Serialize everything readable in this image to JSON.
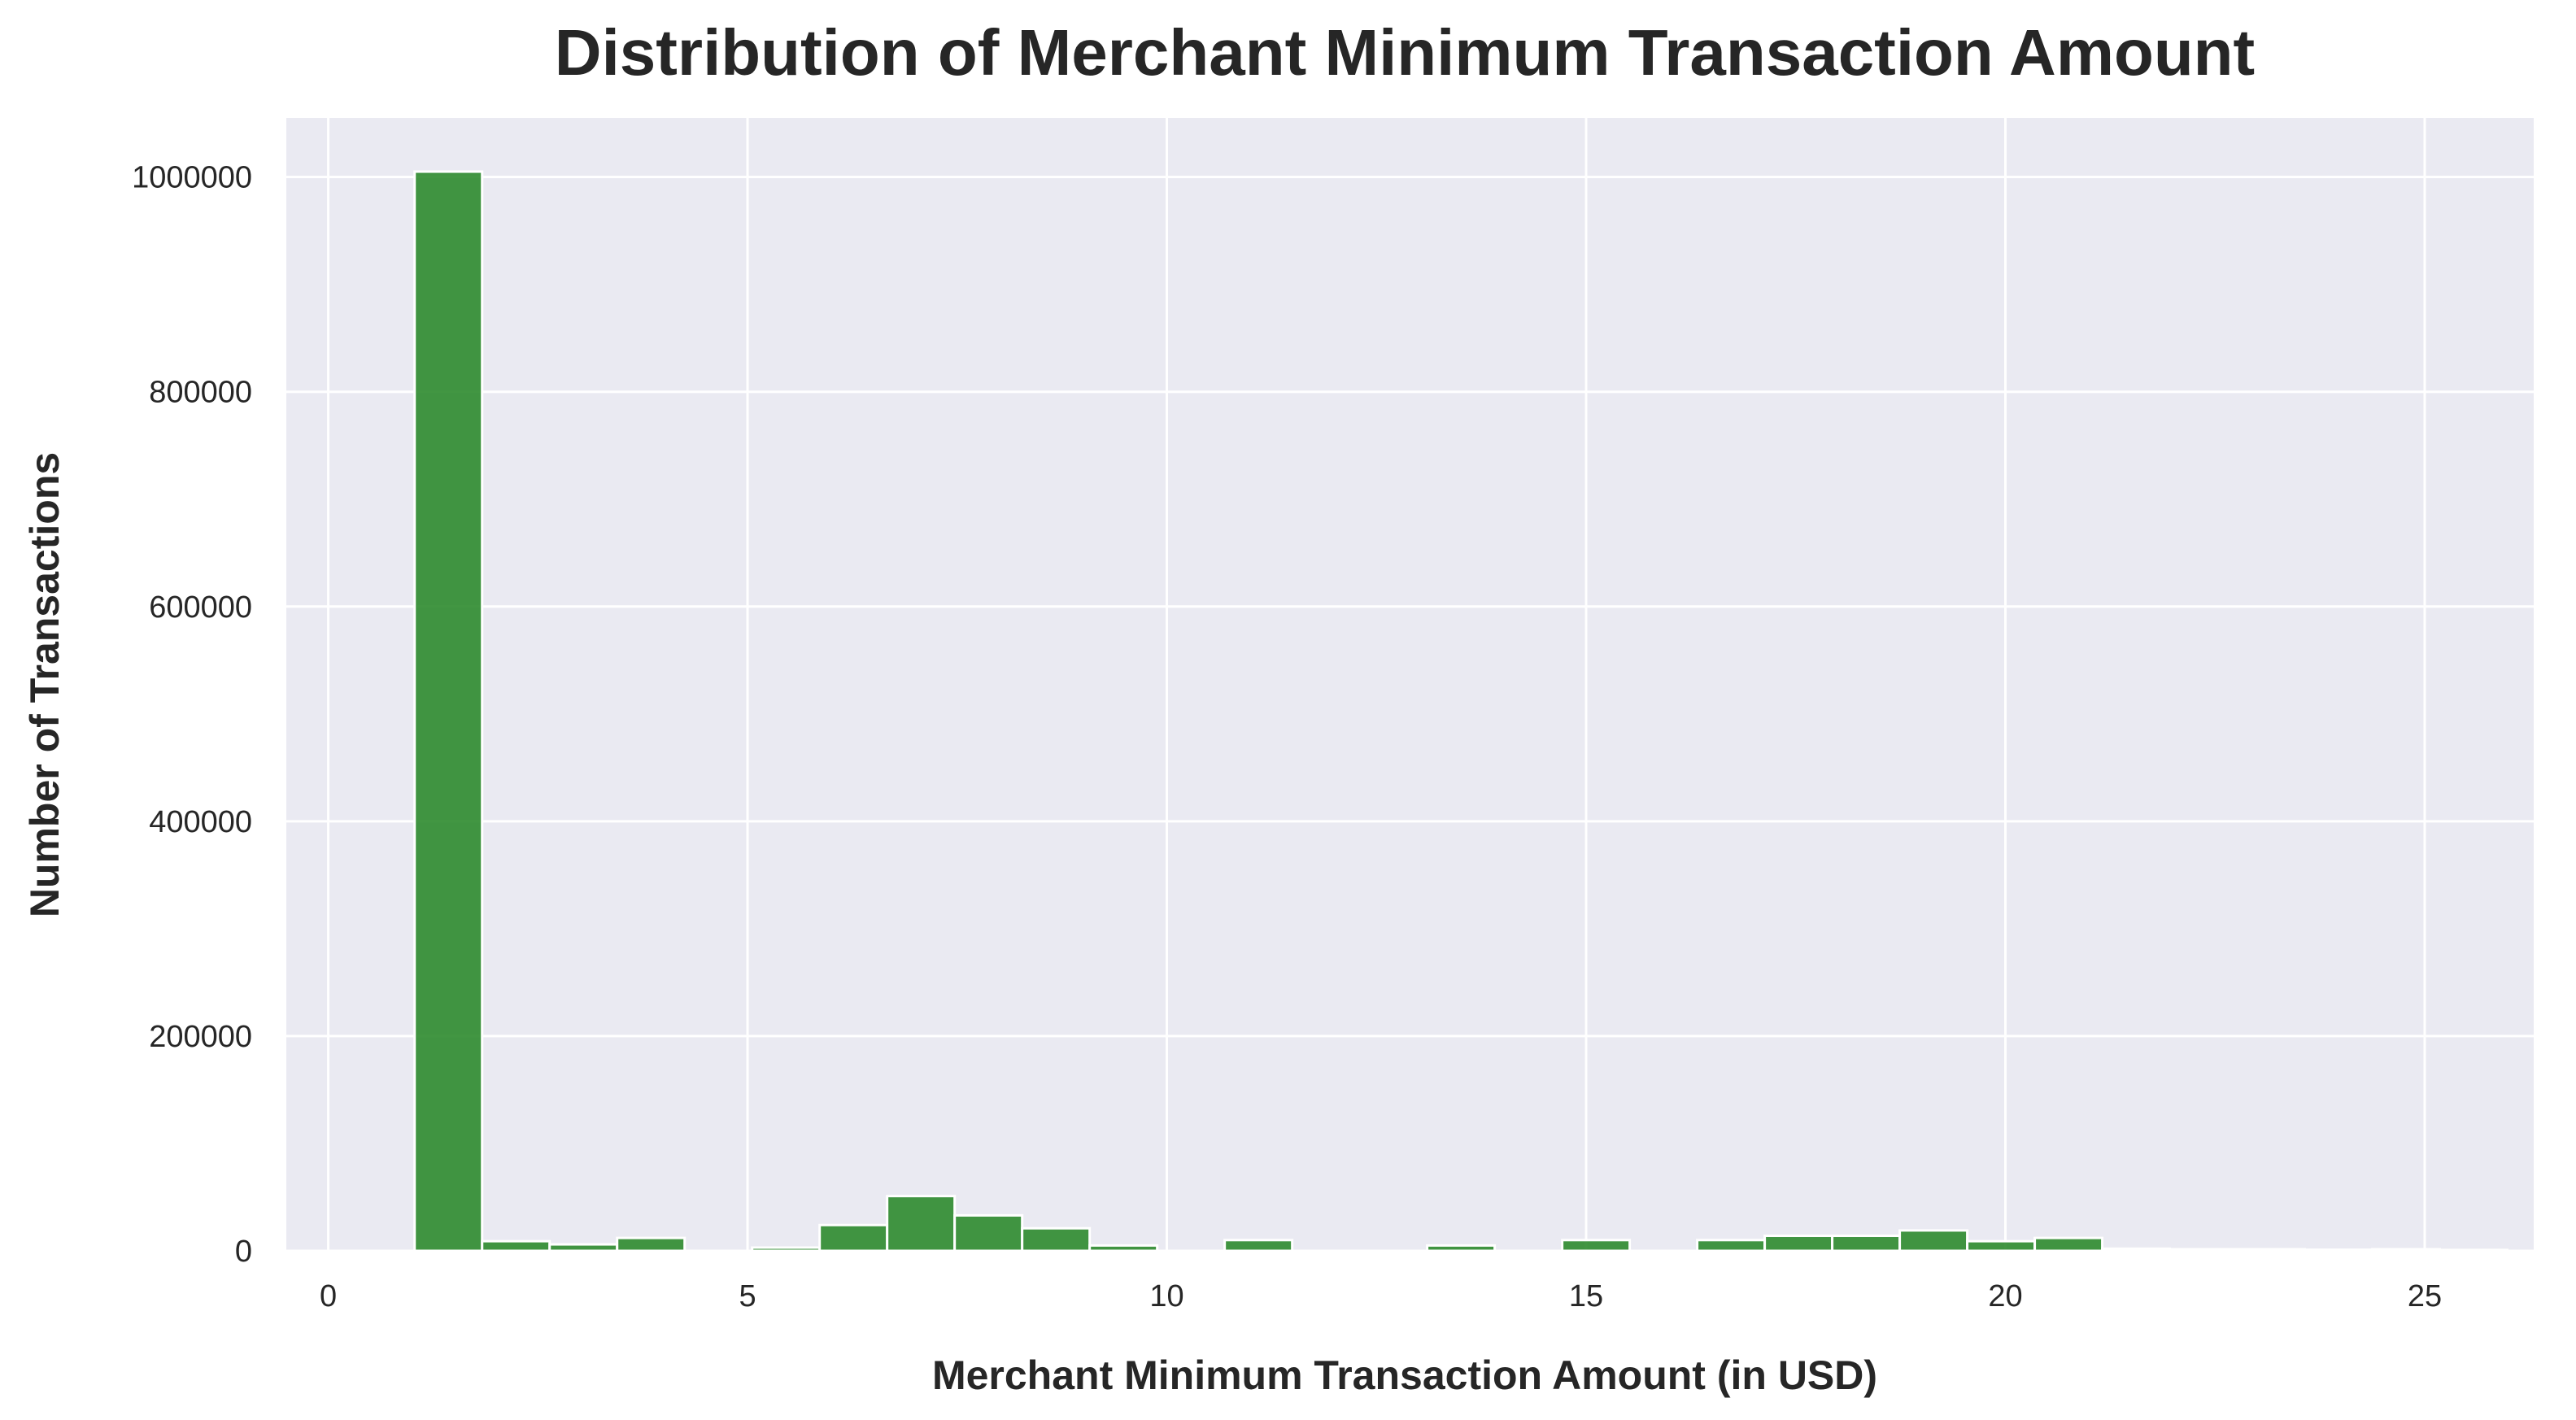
{
  "chart_data": {
    "type": "bar",
    "title": "Distribution of Merchant Minimum Transaction Amount",
    "xlabel": "Merchant Minimum Transaction Amount (in USD)",
    "ylabel": "Number of Transactions",
    "xlim": [
      -0.5,
      26.3
    ],
    "ylim": [
      0,
      1055000
    ],
    "x_ticks": [
      0,
      5,
      10,
      15,
      20,
      25
    ],
    "y_ticks": [
      0,
      200000,
      400000,
      600000,
      800000,
      1000000
    ],
    "grid": true,
    "legend": "none",
    "bar_color": "#2e8b2e",
    "bin_width": 0.805,
    "bins": [
      {
        "x0": 1.03,
        "count": 1005000
      },
      {
        "x0": 1.835,
        "count": 9000
      },
      {
        "x0": 2.64,
        "count": 6000
      },
      {
        "x0": 3.445,
        "count": 12000
      },
      {
        "x0": 4.25,
        "count": 0
      },
      {
        "x0": 5.055,
        "count": 3000
      },
      {
        "x0": 5.86,
        "count": 24000
      },
      {
        "x0": 6.665,
        "count": 51000
      },
      {
        "x0": 7.47,
        "count": 33000
      },
      {
        "x0": 8.275,
        "count": 21000
      },
      {
        "x0": 9.08,
        "count": 5000
      },
      {
        "x0": 9.885,
        "count": 0
      },
      {
        "x0": 10.69,
        "count": 10000
      },
      {
        "x0": 11.495,
        "count": 0
      },
      {
        "x0": 12.3,
        "count": 0
      },
      {
        "x0": 13.105,
        "count": 5000
      },
      {
        "x0": 13.91,
        "count": 0
      },
      {
        "x0": 14.715,
        "count": 10000
      },
      {
        "x0": 15.52,
        "count": 0
      },
      {
        "x0": 16.325,
        "count": 10000
      },
      {
        "x0": 17.13,
        "count": 14000
      },
      {
        "x0": 17.935,
        "count": 14000
      },
      {
        "x0": 18.74,
        "count": 19000
      },
      {
        "x0": 19.545,
        "count": 9000
      },
      {
        "x0": 20.35,
        "count": 12000
      },
      {
        "x0": 21.155,
        "count": 2000
      },
      {
        "x0": 21.96,
        "count": 1500
      },
      {
        "x0": 22.765,
        "count": 1500
      },
      {
        "x0": 23.57,
        "count": 1000
      },
      {
        "x0": 24.375,
        "count": 1500
      },
      {
        "x0": 25.18,
        "count": 800
      }
    ]
  }
}
